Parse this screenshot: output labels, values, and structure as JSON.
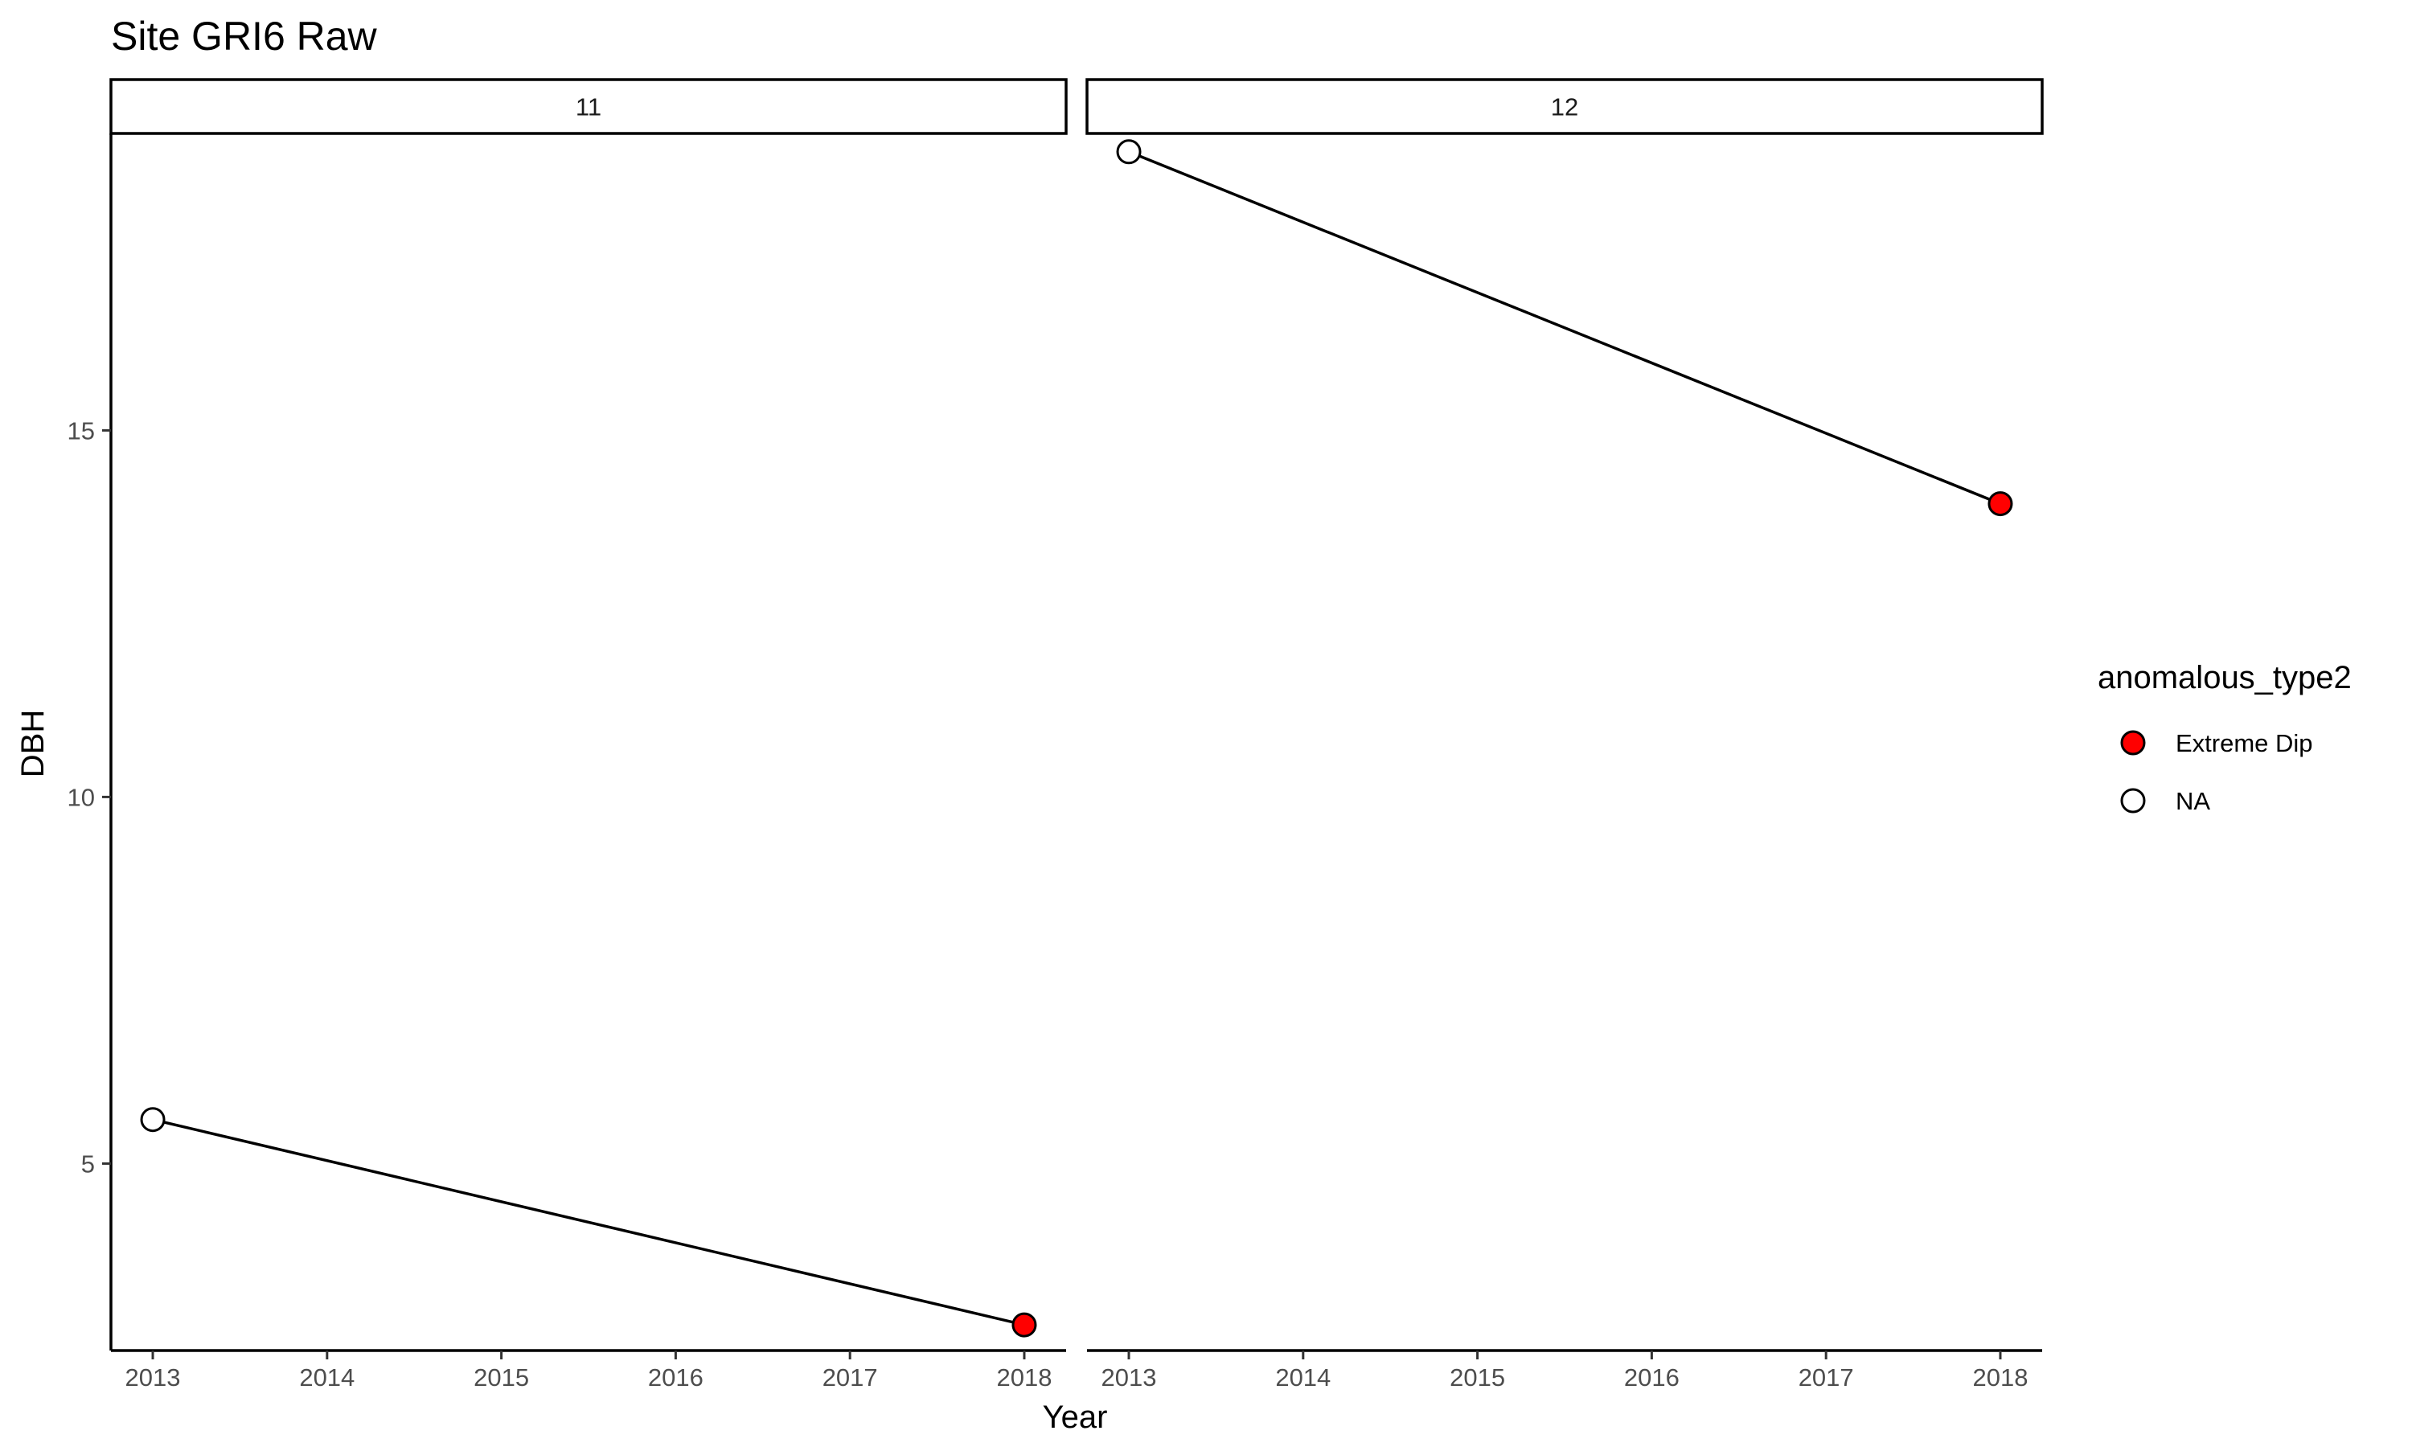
{
  "chart_data": {
    "type": "line",
    "title": "Site GRI6 Raw",
    "xlabel": "Year",
    "ylabel": "DBH",
    "xlim": [
      2012.76,
      2018.24
    ],
    "ylim": [
      2.45,
      19.05
    ],
    "x_ticks": [
      "2013",
      "2014",
      "2015",
      "2016",
      "2017",
      "2018"
    ],
    "x_tick_values": [
      2013,
      2014,
      2015,
      2016,
      2017,
      2018
    ],
    "y_ticks": [
      "5",
      "10",
      "15"
    ],
    "y_tick_values": [
      5,
      10,
      15
    ],
    "grid": false,
    "legend": {
      "title": "anomalous_type2",
      "position": "right",
      "entries": [
        {
          "label": "Extreme Dip",
          "fill": "#ff0000"
        },
        {
          "label": "NA",
          "fill": "#ffffff"
        }
      ]
    },
    "panels": [
      {
        "label": "11",
        "points": [
          {
            "x": 2013,
            "y": 5.6,
            "type": "NA"
          },
          {
            "x": 2018,
            "y": 2.8,
            "type": "Extreme Dip"
          }
        ]
      },
      {
        "label": "12",
        "points": [
          {
            "x": 2013,
            "y": 18.8,
            "type": "NA"
          },
          {
            "x": 2018,
            "y": 14.0,
            "type": "Extreme Dip"
          }
        ]
      }
    ]
  }
}
